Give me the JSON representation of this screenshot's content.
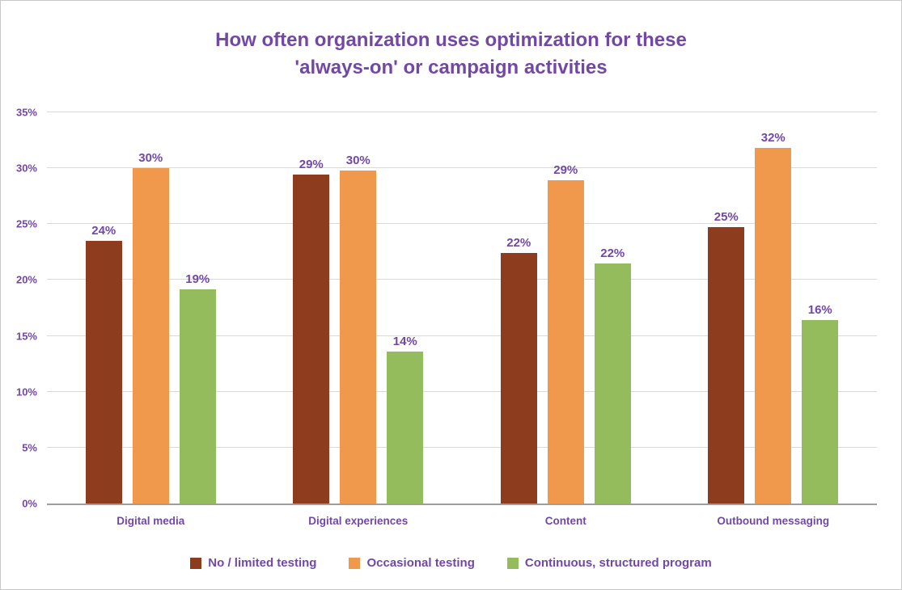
{
  "title": {
    "line1": "How often organization uses optimization for these",
    "line2": "'always-on' or campaign activities"
  },
  "colors": {
    "series1": "#8E3C1E",
    "series2": "#F0994C",
    "series3": "#95BC5C",
    "text_purple": "#7248A5",
    "gridline": "#d9d9d9",
    "axis": "#9e9e9e"
  },
  "chart_data": {
    "type": "bar",
    "categories": [
      "Digital media",
      "Digital experiences",
      "Content",
      "Outbound messaging"
    ],
    "series": [
      {
        "name": "No / limited testing",
        "color_key": "series1",
        "values": [
          24,
          29,
          22,
          25
        ],
        "heights": [
          23.5,
          29.4,
          22.4,
          24.7
        ],
        "labels": [
          "24%",
          "29%",
          "22%",
          "25%"
        ]
      },
      {
        "name": "Occasional testing",
        "color_key": "series2",
        "values": [
          30,
          30,
          29,
          32
        ],
        "heights": [
          30.0,
          29.8,
          28.9,
          31.8
        ],
        "labels": [
          "30%",
          "30%",
          "29%",
          "32%"
        ]
      },
      {
        "name": "Continuous, structured program",
        "color_key": "series3",
        "values": [
          19,
          14,
          22,
          16
        ],
        "heights": [
          19.2,
          13.6,
          21.5,
          16.4
        ],
        "labels": [
          "19%",
          "14%",
          "22%",
          "16%"
        ]
      }
    ],
    "ylim": [
      0,
      35
    ],
    "ytick_step": 5,
    "ytick_labels": [
      "0%",
      "5%",
      "10%",
      "15%",
      "20%",
      "25%",
      "30%",
      "35%"
    ],
    "grid": true,
    "legend_position": "bottom"
  }
}
